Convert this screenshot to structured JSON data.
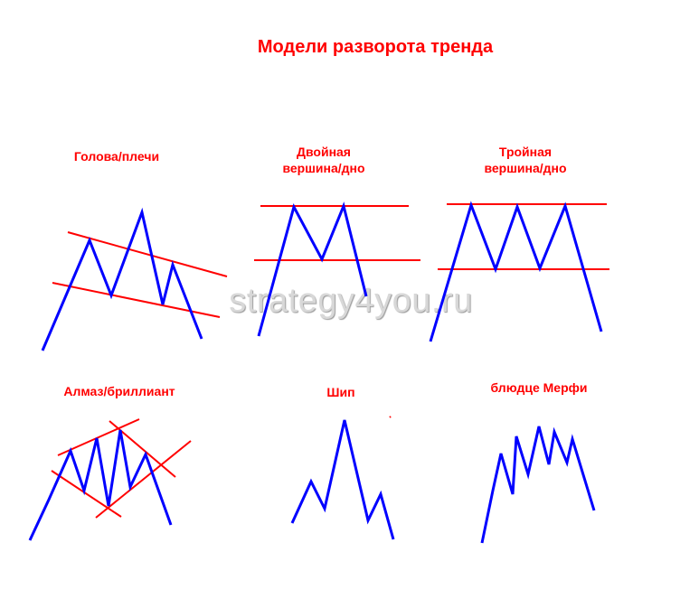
{
  "title": "Модели разворота тренда",
  "watermark": "strategy4you.ru",
  "patterns": {
    "head_shoulders": {
      "label": "Голова/плечи"
    },
    "double_top": {
      "label_line1": "Двойная",
      "label_line2": "вершина/дно"
    },
    "triple_top": {
      "label_line1": "Тройная",
      "label_line2": "вершина/дно"
    },
    "diamond": {
      "label": "Алмаз/бриллиант"
    },
    "spike": {
      "label": "Шип"
    },
    "murphy_saucer": {
      "label": "блюдце Мерфи"
    }
  },
  "colors": {
    "price_line": "#0000ff",
    "trend_line": "#ff0000",
    "text": "#ff0000"
  }
}
